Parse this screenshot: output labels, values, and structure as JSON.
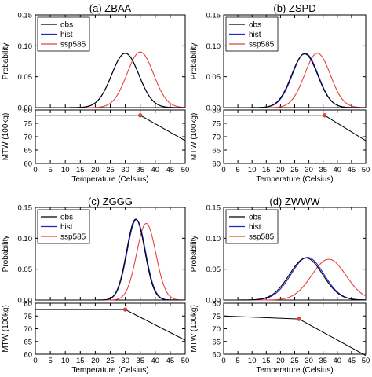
{
  "chart_data": [
    {
      "type": "line",
      "title": "(a) ZBAA",
      "ylabel": "Probability",
      "xlim": [
        0,
        50
      ],
      "ylim": [
        0,
        0.15
      ],
      "yticks": [
        "0.00",
        "0.05",
        "0.10",
        "0.15"
      ],
      "legend": [
        "obs",
        "hist",
        "ssp585"
      ],
      "legend_position": "top-left",
      "series": [
        {
          "name": "obs",
          "color": "#000000",
          "mean": 30.0,
          "peak": 0.088
        },
        {
          "name": "hist",
          "color": "#2222cc",
          "mean": 30.0,
          "peak": 0.088
        },
        {
          "name": "ssp585",
          "color": "#e8413c",
          "mean": 35.0,
          "peak": 0.09
        }
      ],
      "mtw": {
        "ylabel": "MTW (100kg)",
        "xlabel": "Temperature (Celsius)",
        "ylim": [
          60,
          80
        ],
        "yticks": [
          "60",
          "65",
          "70",
          "75",
          "80"
        ],
        "xticks": [
          "0",
          "5",
          "10",
          "15",
          "20",
          "25",
          "30",
          "35",
          "40",
          "45",
          "50"
        ],
        "line": [
          [
            0,
            78.0
          ],
          [
            35,
            78.0
          ],
          [
            50,
            68.5
          ]
        ],
        "marker": [
          35,
          78.0
        ]
      }
    },
    {
      "type": "line",
      "title": "(b) ZSPD",
      "ylabel": "Probability",
      "xlim": [
        0,
        50
      ],
      "ylim": [
        0,
        0.15
      ],
      "yticks": [
        "0.00",
        "0.05",
        "0.10",
        "0.15"
      ],
      "legend": [
        "obs",
        "hist",
        "ssp585"
      ],
      "legend_position": "top-left",
      "series": [
        {
          "name": "obs",
          "color": "#000000",
          "mean": 28.5,
          "peak": 0.087
        },
        {
          "name": "hist",
          "color": "#2222cc",
          "mean": 28.7,
          "peak": 0.088
        },
        {
          "name": "ssp585",
          "color": "#e8413c",
          "mean": 33.0,
          "peak": 0.088
        }
      ],
      "mtw": {
        "ylabel": "MTW (100kg)",
        "xlabel": "Temperature (Celsius)",
        "ylim": [
          60,
          80
        ],
        "yticks": [
          "60",
          "65",
          "70",
          "75",
          "80"
        ],
        "xticks": [
          "0",
          "5",
          "10",
          "15",
          "20",
          "25",
          "30",
          "35",
          "40",
          "45",
          "50"
        ],
        "line": [
          [
            0,
            78.0
          ],
          [
            35.5,
            78.0
          ],
          [
            50,
            68.5
          ]
        ],
        "marker": [
          35.5,
          78.0
        ]
      }
    },
    {
      "type": "line",
      "title": "(c) ZGGG",
      "ylabel": "Probability",
      "xlim": [
        0,
        50
      ],
      "ylim": [
        0,
        0.15
      ],
      "yticks": [
        "0.00",
        "0.05",
        "0.10",
        "0.15"
      ],
      "legend": [
        "obs",
        "hist",
        "ssp585"
      ],
      "legend_position": "top-left",
      "series": [
        {
          "name": "obs",
          "color": "#000000",
          "mean": 33.5,
          "peak": 0.131
        },
        {
          "name": "hist",
          "color": "#2222cc",
          "mean": 33.7,
          "peak": 0.13
        },
        {
          "name": "ssp585",
          "color": "#e8413c",
          "mean": 37.0,
          "peak": 0.124
        }
      ],
      "mtw": {
        "ylabel": "MTW (100kg)",
        "xlabel": "Temperature (Celsius)",
        "ylim": [
          60,
          80
        ],
        "yticks": [
          "60",
          "65",
          "70",
          "75",
          "80"
        ],
        "xticks": [
          "0",
          "5",
          "10",
          "15",
          "20",
          "25",
          "30",
          "35",
          "40",
          "45",
          "50"
        ],
        "line": [
          [
            0,
            77.5
          ],
          [
            30,
            77.5
          ],
          [
            50,
            65.5
          ]
        ],
        "marker": [
          30,
          77.5
        ]
      }
    },
    {
      "type": "line",
      "title": "(d) ZWWW",
      "ylabel": "Probability",
      "xlim": [
        0,
        50
      ],
      "ylim": [
        0,
        0.15
      ],
      "yticks": [
        "0.00",
        "0.05",
        "0.10",
        "0.15"
      ],
      "legend": [
        "obs",
        "hist",
        "ssp585"
      ],
      "legend_position": "top-left",
      "series": [
        {
          "name": "obs",
          "color": "#000000",
          "mean": 29.0,
          "peak": 0.068
        },
        {
          "name": "hist",
          "color": "#2222cc",
          "mean": 29.5,
          "peak": 0.069
        },
        {
          "name": "ssp585",
          "color": "#e8413c",
          "mean": 37.0,
          "peak": 0.066
        }
      ],
      "mtw": {
        "ylabel": "MTW (100kg)",
        "xlabel": "Temperature (Celsius)",
        "ylim": [
          60,
          80
        ],
        "yticks": [
          "60",
          "65",
          "70",
          "75",
          "80"
        ],
        "xticks": [
          "0",
          "5",
          "10",
          "15",
          "20",
          "25",
          "30",
          "35",
          "40",
          "45",
          "50"
        ],
        "line": [
          [
            0,
            75.0
          ],
          [
            26.5,
            73.8
          ],
          [
            50,
            59.5
          ]
        ],
        "marker": [
          26.5,
          73.8
        ]
      }
    }
  ]
}
